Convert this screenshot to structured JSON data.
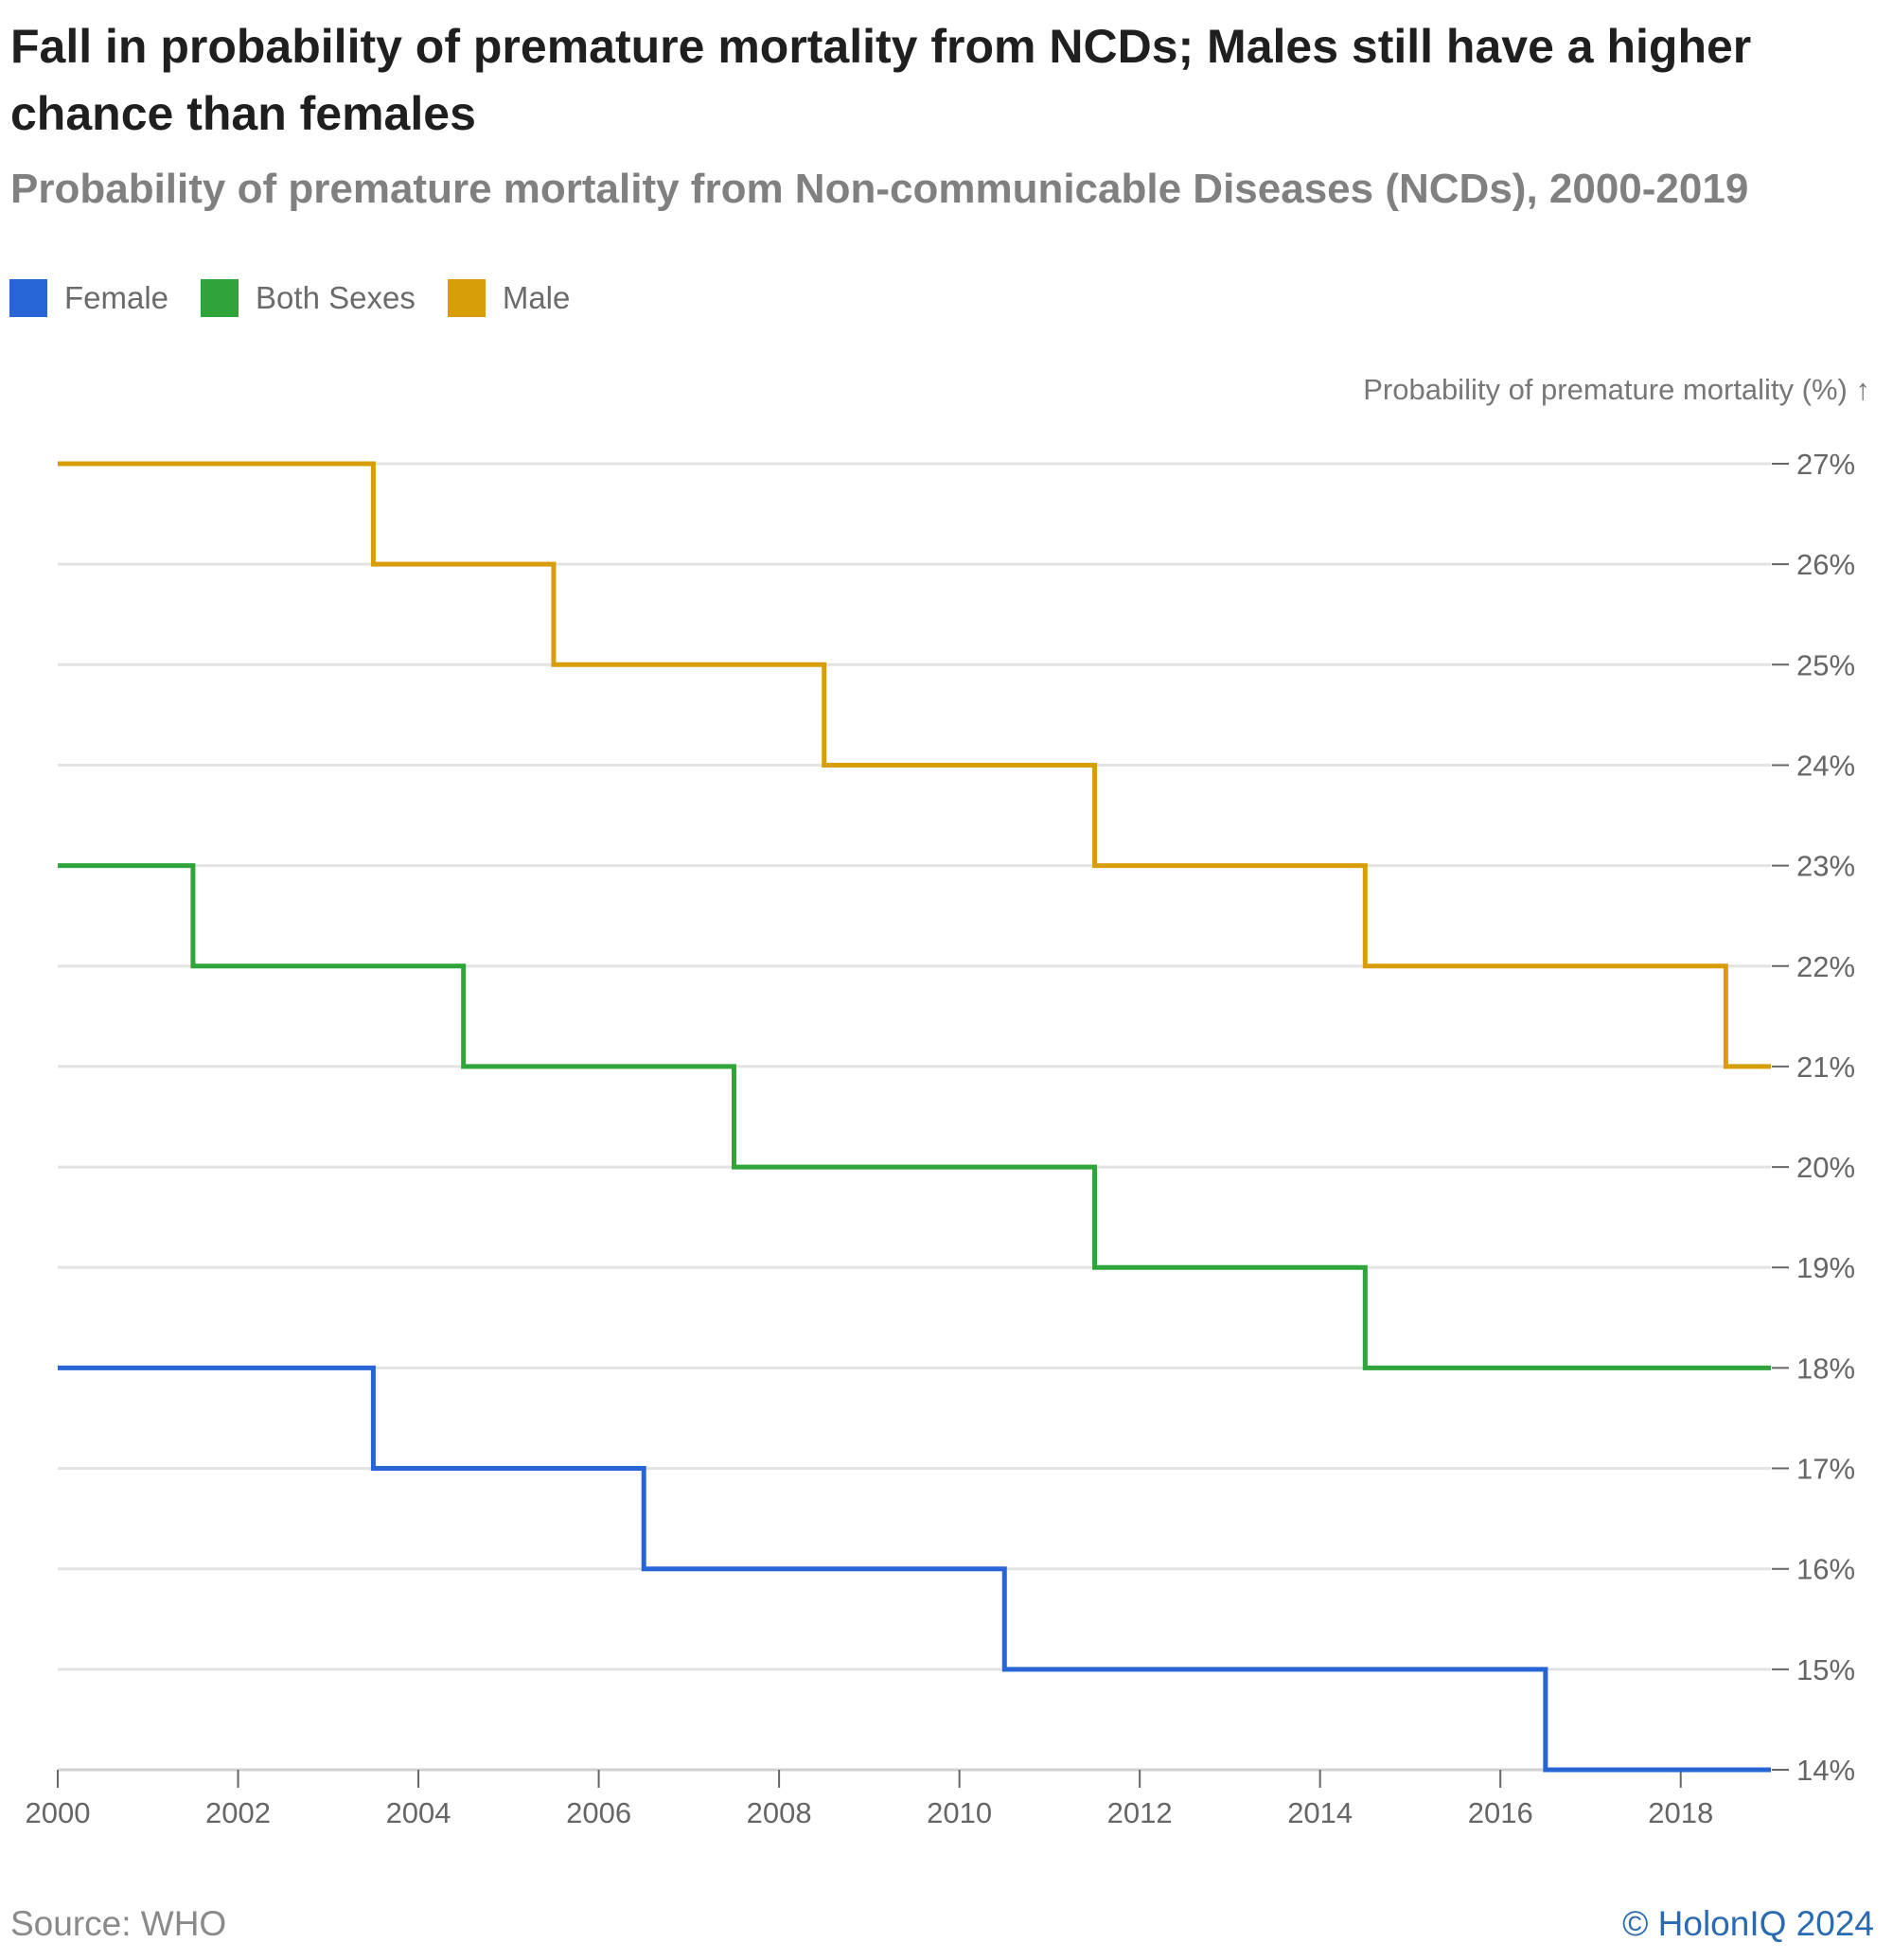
{
  "chart_data": {
    "type": "line",
    "step": "mid",
    "title": "Fall in probability of premature mortality from NCDs; Males still have a higher chance than females",
    "subtitle": "Probability of premature mortality from Non-communicable Diseases (NCDs), 2000-2019",
    "xlabel": "",
    "ylabel": "Probability of premature mortality (%) ↑",
    "xlim": [
      2000,
      2019
    ],
    "ylim": [
      14,
      27
    ],
    "x_ticks": [
      2000,
      2002,
      2004,
      2006,
      2008,
      2010,
      2012,
      2014,
      2016,
      2018
    ],
    "x_tick_labels": [
      "2000",
      "2002",
      "2004",
      "2006",
      "2008",
      "2010",
      "2012",
      "2014",
      "2016",
      "2018"
    ],
    "y_ticks": [
      14,
      15,
      16,
      17,
      18,
      19,
      20,
      21,
      22,
      23,
      24,
      25,
      26,
      27
    ],
    "y_tick_labels": [
      "14%",
      "15%",
      "16%",
      "17%",
      "18%",
      "19%",
      "20%",
      "21%",
      "22%",
      "23%",
      "24%",
      "25%",
      "26%",
      "27%"
    ],
    "legend_position": "top-left",
    "grid": true,
    "x": [
      2000,
      2001,
      2002,
      2003,
      2004,
      2005,
      2006,
      2007,
      2008,
      2009,
      2010,
      2011,
      2012,
      2013,
      2014,
      2015,
      2016,
      2017,
      2018,
      2019
    ],
    "series": [
      {
        "name": "Female",
        "color": "#2764d6",
        "values": [
          18,
          18,
          18,
          18,
          17,
          17,
          17,
          16,
          16,
          16,
          16,
          15,
          15,
          15,
          15,
          15,
          15,
          14,
          14,
          14
        ]
      },
      {
        "name": "Both Sexes",
        "color": "#2ea43a",
        "values": [
          23,
          23,
          22,
          22,
          22,
          21,
          21,
          21,
          20,
          20,
          20,
          20,
          19,
          19,
          19,
          18,
          18,
          18,
          18,
          18
        ]
      },
      {
        "name": "Male",
        "color": "#d89e0a",
        "values": [
          27,
          27,
          27,
          27,
          26,
          26,
          25,
          25,
          25,
          24,
          24,
          24,
          23,
          23,
          23,
          22,
          22,
          22,
          22,
          21
        ]
      }
    ]
  },
  "footer": {
    "source": "Source: WHO",
    "copyright": "© HolonIQ 2024"
  }
}
